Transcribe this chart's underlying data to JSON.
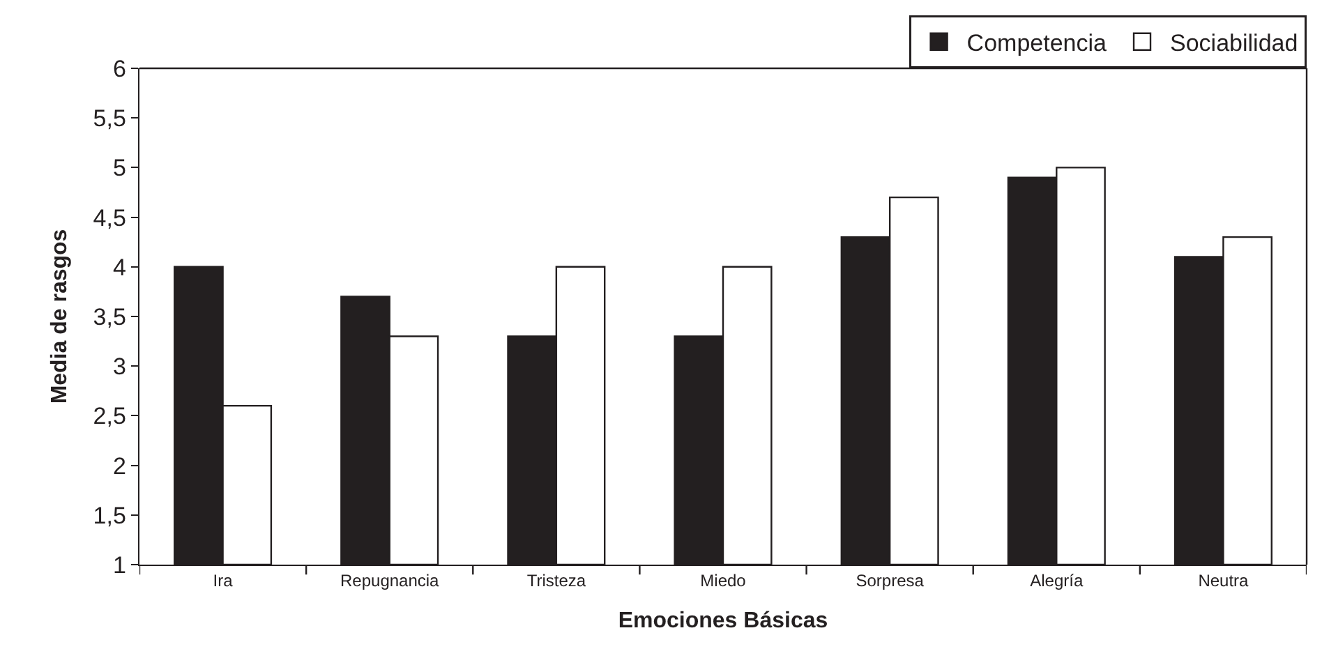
{
  "chart_data": {
    "type": "bar",
    "xlabel": "Emociones Básicas",
    "ylabel": "Media de rasgos",
    "categories": [
      "Ira",
      "Repugnancia",
      "Tristeza",
      "Miedo",
      "Sorpresa",
      "Alegría",
      "Neutra"
    ],
    "series": [
      {
        "name": "Competencia",
        "color": "#231f20",
        "values": [
          4.0,
          3.7,
          3.3,
          3.3,
          4.3,
          4.9,
          4.1
        ]
      },
      {
        "name": "Sociabilidad",
        "color": "#ffffff",
        "values": [
          2.6,
          3.3,
          4.0,
          4.0,
          4.7,
          5.0,
          4.3
        ]
      }
    ],
    "ylim": [
      1,
      6
    ],
    "yticks": [
      {
        "value": 1,
        "label": "1"
      },
      {
        "value": 1.5,
        "label": "1,5"
      },
      {
        "value": 2,
        "label": "2"
      },
      {
        "value": 2.5,
        "label": "2,5"
      },
      {
        "value": 3,
        "label": "3"
      },
      {
        "value": 3.5,
        "label": "3,5"
      },
      {
        "value": 4,
        "label": "4"
      },
      {
        "value": 4.5,
        "label": "4,5"
      },
      {
        "value": 5,
        "label": "5"
      },
      {
        "value": 5.5,
        "label": "5,5"
      },
      {
        "value": 6,
        "label": "6"
      }
    ],
    "legend": "top right"
  }
}
